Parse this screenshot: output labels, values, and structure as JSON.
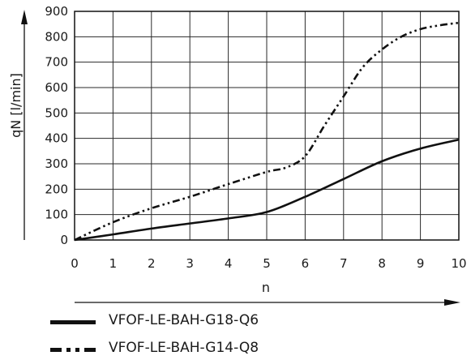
{
  "chart_data": {
    "type": "line",
    "xlabel": "n",
    "ylabel": "qN [l/min]",
    "xlim": [
      0,
      10
    ],
    "ylim": [
      0,
      900
    ],
    "xticks": [
      0,
      1,
      2,
      3,
      4,
      5,
      6,
      7,
      8,
      9,
      10
    ],
    "yticks": [
      0,
      100,
      200,
      300,
      400,
      500,
      600,
      700,
      800,
      900
    ],
    "grid": true,
    "legend_position": "bottom",
    "series": [
      {
        "name": "VFOF-LE-BAH-G18-Q6",
        "style": "solid",
        "x": [
          0,
          1,
          2,
          3,
          4,
          5,
          6,
          7,
          8,
          9,
          10
        ],
        "y": [
          0,
          22,
          45,
          65,
          85,
          110,
          170,
          240,
          310,
          360,
          395
        ]
      },
      {
        "name": "VFOF-LE-BAH-G14-Q8",
        "style": "dash-dot-dot",
        "x": [
          0,
          1,
          2,
          3,
          4,
          5,
          5.5,
          6,
          6.5,
          7,
          7.5,
          8,
          8.5,
          9,
          9.5,
          10
        ],
        "y": [
          0,
          70,
          125,
          170,
          220,
          268,
          285,
          330,
          450,
          565,
          680,
          750,
          800,
          830,
          845,
          855
        ]
      }
    ]
  }
}
